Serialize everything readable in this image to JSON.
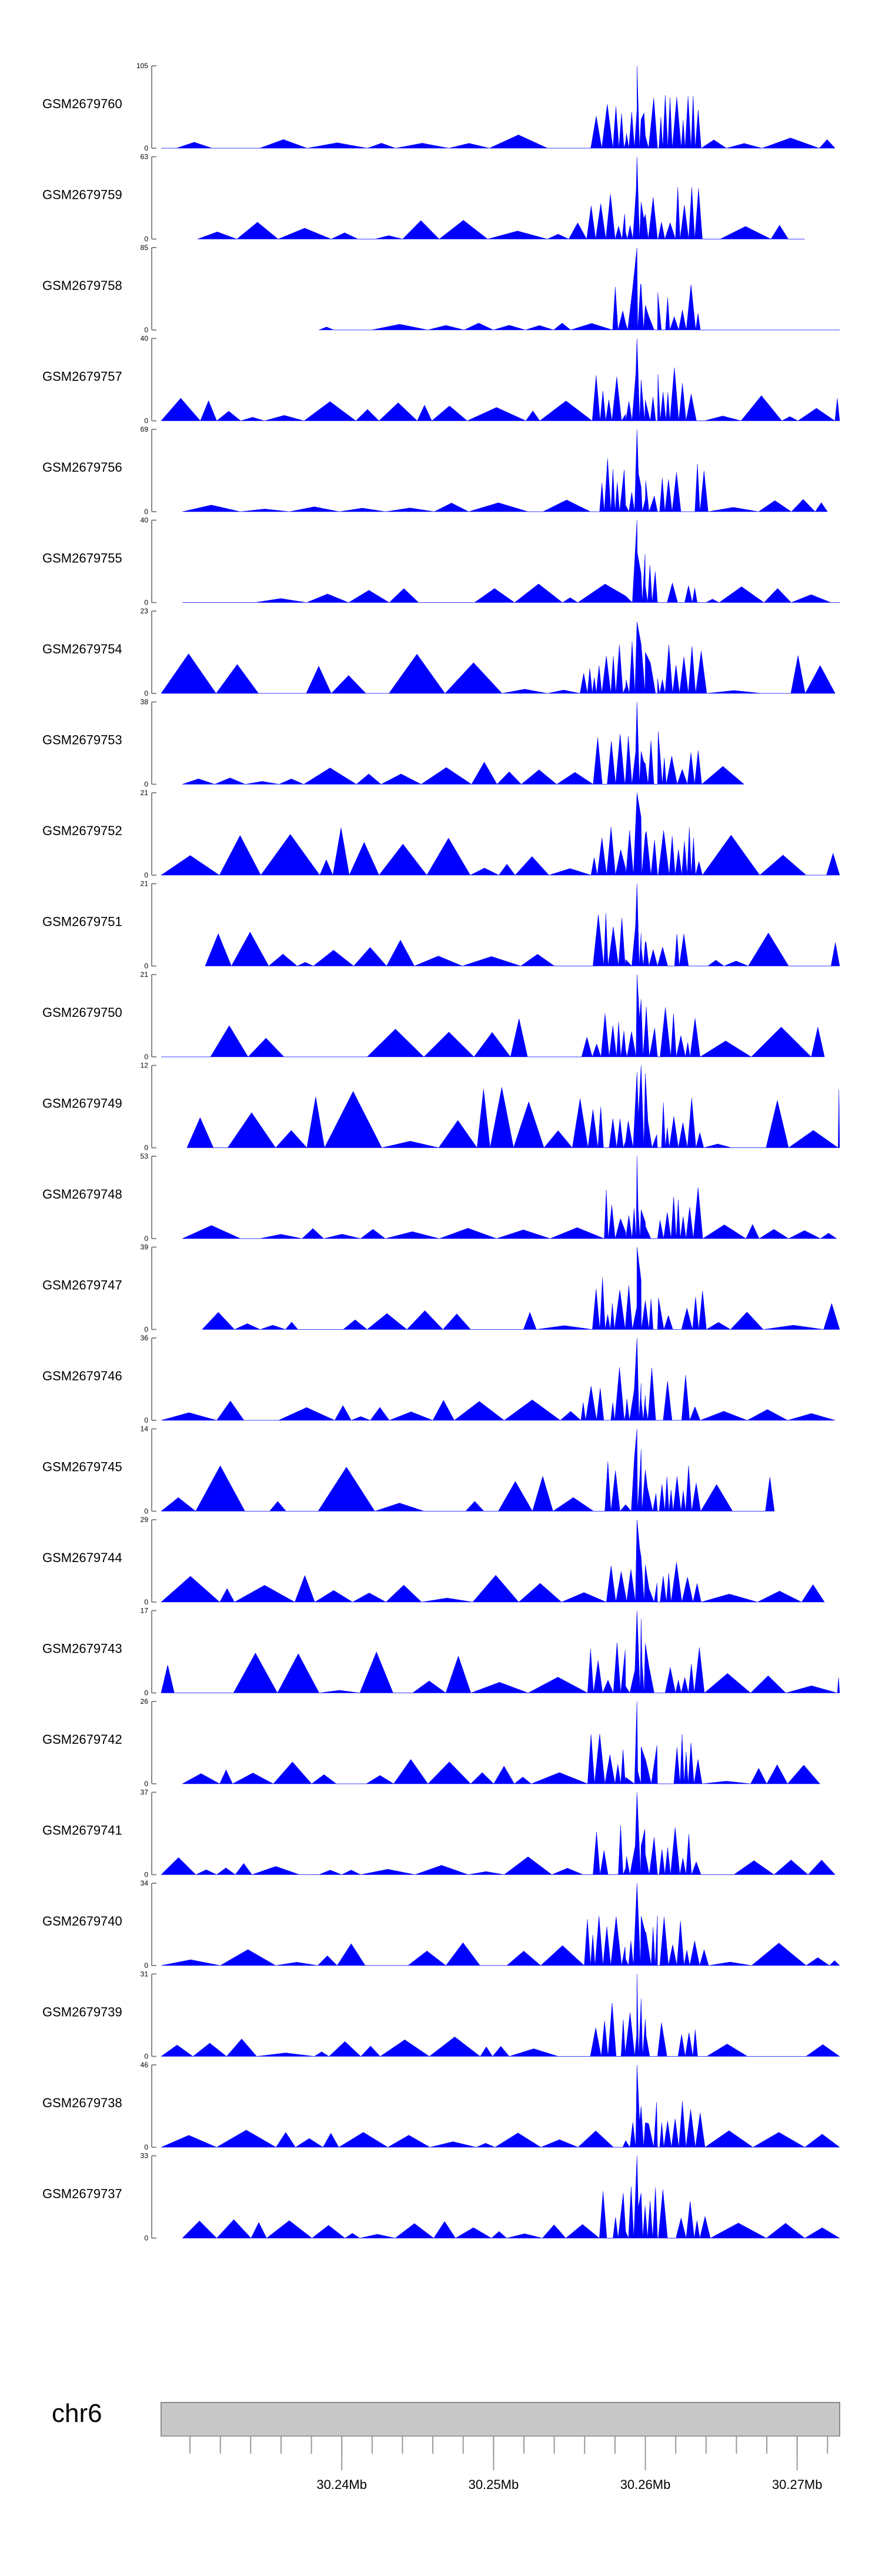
{
  "chart_data": {
    "type": "area",
    "title": "",
    "xlabel": "",
    "fill_color": "#0000ff",
    "xlim": [
      30.2281,
      30.2728
    ],
    "chromosome": "chr6",
    "ideogram_color": "#c8c8c8",
    "axis_ticks": [
      "30.24Mb",
      "30.25Mb",
      "30.26Mb",
      "30.27Mb"
    ],
    "axis_tick_values": [
      30.24,
      30.25,
      30.26,
      30.27
    ],
    "minor_tick_step": 0.002,
    "peak_center": 30.2596,
    "tracks": [
      {
        "name": "GSM2679760",
        "ymax": 105,
        "ymin": 0,
        "range": [
          30.2281,
          30.2725
        ],
        "peak": 105,
        "secondary": [
          0.35,
          0.15
        ],
        "noise": 0.14
      },
      {
        "name": "GSM2679759",
        "ymax": 63,
        "ymin": 0,
        "range": [
          30.2305,
          30.2705
        ],
        "peak": 63,
        "secondary": [
          0.45,
          0.3
        ],
        "noise": 0.2
      },
      {
        "name": "GSM2679758",
        "ymax": 85,
        "ymin": 0,
        "range": [
          30.2385,
          30.2728
        ],
        "peak": 85,
        "secondary": [
          0.55,
          0.3
        ],
        "noise": 0.06
      },
      {
        "name": "GSM2679757",
        "ymax": 40,
        "ymin": 0,
        "range": [
          30.2281,
          30.2728
        ],
        "peak": 40,
        "secondary": [
          0.5,
          0.25
        ],
        "noise": 0.3
      },
      {
        "name": "GSM2679756",
        "ymax": 69,
        "ymin": 0,
        "range": [
          30.2295,
          30.272
        ],
        "peak": 69,
        "secondary": [
          0.3,
          0.15
        ],
        "noise": 0.12
      },
      {
        "name": "GSM2679755",
        "ymax": 40,
        "ymin": 0,
        "range": [
          30.2295,
          30.2728
        ],
        "peak": 40,
        "secondary": [
          0.35,
          0.2
        ],
        "noise": 0.2
      },
      {
        "name": "GSM2679754",
        "ymax": 23,
        "ymin": 0,
        "range": [
          30.2281,
          30.2725
        ],
        "peak": 20,
        "secondary": [
          0.6,
          0.5
        ],
        "noise": 0.5
      },
      {
        "name": "GSM2679753",
        "ymax": 38,
        "ymin": 0,
        "range": [
          30.2295,
          30.2665
        ],
        "peak": 38,
        "secondary": [
          0.4,
          0.25
        ],
        "noise": 0.25
      },
      {
        "name": "GSM2679752",
        "ymax": 21,
        "ymin": 0,
        "range": [
          30.2281,
          30.2728
        ],
        "peak": 21,
        "secondary": [
          0.7,
          0.5
        ],
        "noise": 0.6
      },
      {
        "name": "GSM2679751",
        "ymax": 21,
        "ymin": 0,
        "range": [
          30.231,
          30.2728
        ],
        "peak": 21,
        "secondary": [
          0.4,
          0.3
        ],
        "noise": 0.4
      },
      {
        "name": "GSM2679750",
        "ymax": 21,
        "ymin": 0,
        "range": [
          30.2281,
          30.2718
        ],
        "peak": 21,
        "secondary": [
          0.7,
          0.4
        ],
        "noise": 0.45
      },
      {
        "name": "GSM2679749",
        "ymax": 12,
        "ymin": 0,
        "range": [
          30.2298,
          30.2728
        ],
        "peak": 11,
        "secondary": [
          1.0,
          0.9
        ],
        "noise": 0.75
      },
      {
        "name": "GSM2679748",
        "ymax": 53,
        "ymin": 0,
        "range": [
          30.2295,
          30.2726
        ],
        "peak": 53,
        "secondary": [
          0.35,
          0.2
        ],
        "noise": 0.16
      },
      {
        "name": "GSM2679747",
        "ymax": 39,
        "ymin": 0,
        "range": [
          30.2308,
          30.2728
        ],
        "peak": 39,
        "secondary": [
          0.6,
          0.35
        ],
        "noise": 0.3
      },
      {
        "name": "GSM2679746",
        "ymax": 36,
        "ymin": 0,
        "range": [
          30.2281,
          30.2725
        ],
        "peak": 36,
        "secondary": [
          0.45,
          0.3
        ],
        "noise": 0.22
      },
      {
        "name": "GSM2679745",
        "ymax": 14,
        "ymin": 0,
        "range": [
          30.2281,
          30.2685
        ],
        "peak": 14,
        "secondary": [
          0.75,
          0.5
        ],
        "noise": 0.55
      },
      {
        "name": "GSM2679744",
        "ymax": 29,
        "ymin": 0,
        "range": [
          30.2281,
          30.2718
        ],
        "peak": 29,
        "secondary": [
          0.55,
          0.45
        ],
        "noise": 0.3
      },
      {
        "name": "GSM2679743",
        "ymax": 17,
        "ymin": 0,
        "range": [
          30.2281,
          30.2728
        ],
        "peak": 17,
        "secondary": [
          0.9,
          0.6
        ],
        "noise": 0.5
      },
      {
        "name": "GSM2679742",
        "ymax": 26,
        "ymin": 0,
        "range": [
          30.2295,
          30.2715
        ],
        "peak": 26,
        "secondary": [
          0.45,
          0.3
        ],
        "noise": 0.3
      },
      {
        "name": "GSM2679741",
        "ymax": 37,
        "ymin": 0,
        "range": [
          30.2281,
          30.2725
        ],
        "peak": 37,
        "secondary": [
          0.35,
          0.25
        ],
        "noise": 0.2
      },
      {
        "name": "GSM2679740",
        "ymax": 34,
        "ymin": 0,
        "range": [
          30.2281,
          30.2728
        ],
        "peak": 34,
        "secondary": [
          0.6,
          0.4
        ],
        "noise": 0.25
      },
      {
        "name": "GSM2679739",
        "ymax": 31,
        "ymin": 0,
        "range": [
          30.2281,
          30.2728
        ],
        "peak": 31,
        "secondary": [
          0.7,
          0.45
        ],
        "noise": 0.25
      },
      {
        "name": "GSM2679738",
        "ymax": 46,
        "ymin": 0,
        "range": [
          30.2281,
          30.2728
        ],
        "peak": 46,
        "secondary": [
          0.5,
          0.3
        ],
        "noise": 0.18
      },
      {
        "name": "GSM2679737",
        "ymax": 33,
        "ymin": 0,
        "range": [
          30.2295,
          30.2728
        ],
        "peak": 33,
        "secondary": [
          0.55,
          0.35
        ],
        "noise": 0.22
      }
    ]
  }
}
